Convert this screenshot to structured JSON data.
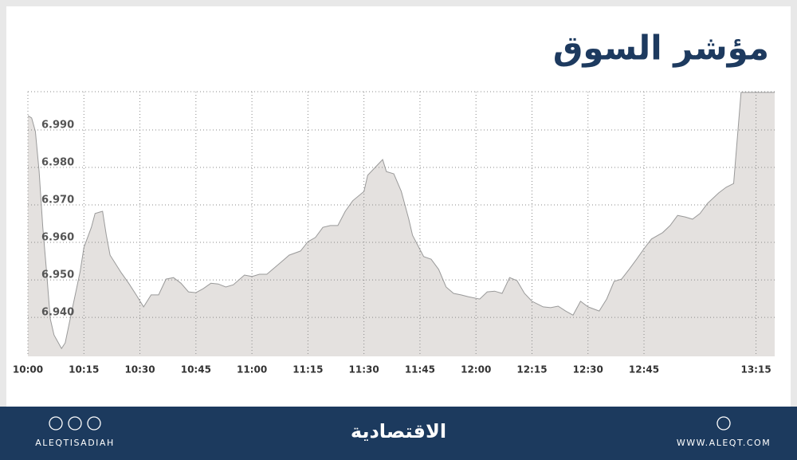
{
  "chart_data": {
    "type": "area",
    "title": "مؤشر السوق",
    "x": [
      "10:00",
      "10:01",
      "10:02",
      "10:03",
      "10:04",
      "10:05",
      "10:06",
      "10:07",
      "10:09",
      "10:10",
      "10:12",
      "10:14",
      "10:15",
      "10:17",
      "10:18",
      "10:20",
      "10:21",
      "10:22",
      "10:25",
      "10:27",
      "10:29",
      "10:31",
      "10:33",
      "10:35",
      "10:37",
      "10:39",
      "10:41",
      "10:43",
      "10:45",
      "10:47",
      "10:49",
      "10:51",
      "10:53",
      "10:55",
      "10:58",
      "11:00",
      "11:02",
      "11:04",
      "11:06",
      "11:08",
      "11:10",
      "11:13",
      "11:15",
      "11:17",
      "11:19",
      "11:21",
      "11:23",
      "11:25",
      "11:27",
      "11:30",
      "11:31",
      "11:33",
      "11:35",
      "11:36",
      "11:38",
      "11:40",
      "11:42",
      "11:43",
      "11:46",
      "11:48",
      "11:50",
      "11:52",
      "11:54",
      "11:56",
      "11:58",
      "12:01",
      "12:03",
      "12:05",
      "12:07",
      "12:09",
      "12:11",
      "12:13",
      "12:15",
      "12:18",
      "12:20",
      "12:22",
      "12:24",
      "12:26",
      "12:28",
      "12:30",
      "12:33",
      "12:35",
      "12:37",
      "12:39",
      "12:41",
      "12:43",
      "12:45",
      "12:47",
      "12:50",
      "12:52",
      "12:54",
      "12:56",
      "12:58",
      "13:00",
      "13:02",
      "13:05",
      "13:07",
      "13:09",
      "13:11",
      "13:20"
    ],
    "values": [
      6.9938,
      6.9932,
      6.9896,
      6.9789,
      6.964,
      6.9523,
      6.9396,
      6.9353,
      6.9317,
      6.9332,
      6.9428,
      6.9523,
      6.9587,
      6.964,
      6.9677,
      6.9683,
      6.9619,
      6.9566,
      6.9519,
      6.9491,
      6.946,
      6.9428,
      6.946,
      6.946,
      6.9502,
      6.9506,
      6.9491,
      6.9468,
      6.9466,
      6.9477,
      6.9491,
      6.9489,
      6.9481,
      6.9487,
      6.9513,
      6.9509,
      6.9515,
      6.9515,
      6.9532,
      6.9549,
      6.9566,
      6.9577,
      6.9602,
      6.9613,
      6.964,
      6.9645,
      6.9645,
      6.9683,
      6.9711,
      6.9736,
      6.9779,
      6.98,
      6.9821,
      6.9789,
      6.9783,
      6.9736,
      6.9662,
      6.9619,
      6.9562,
      6.9555,
      6.9528,
      6.9481,
      6.9464,
      6.946,
      6.9455,
      6.9449,
      6.9468,
      6.947,
      6.9464,
      6.9506,
      6.9498,
      6.9464,
      6.9443,
      6.9428,
      6.9426,
      6.943,
      6.9417,
      6.9406,
      6.9443,
      6.9428,
      6.9417,
      6.9449,
      6.9496,
      6.9502,
      6.9528,
      6.9555,
      6.9583,
      6.9609,
      6.9626,
      6.9645,
      6.9672,
      6.9668,
      6.9662,
      6.9677,
      6.9704,
      6.9732,
      6.9747,
      6.9757,
      7.0,
      7.0
    ],
    "color": "#e4e1df",
    "line_color": "#9a9a9a",
    "xlim": [
      "10:00",
      "13:20"
    ],
    "xticks": [
      "10:00",
      "10:15",
      "10:30",
      "10:45",
      "11:00",
      "11:15",
      "11:30",
      "11:45",
      "12:00",
      "12:15",
      "12:30",
      "12:45",
      "13:15"
    ],
    "ylim": [
      6.9296,
      7.0002
    ],
    "yticks": [
      {
        "value": 6.94,
        "label": "6.940"
      },
      {
        "value": 6.95,
        "label": "6.950"
      },
      {
        "value": 6.96,
        "label": "6.960"
      },
      {
        "value": 6.97,
        "label": "6.970"
      },
      {
        "value": 6.98,
        "label": "6.980"
      },
      {
        "value": 6.99,
        "label": "6.990"
      }
    ],
    "grid": true
  },
  "footer": {
    "handle": "ALEQTISADIAH",
    "logo": "الاقتصادية",
    "website": "WWW.ALEQT.COM"
  }
}
